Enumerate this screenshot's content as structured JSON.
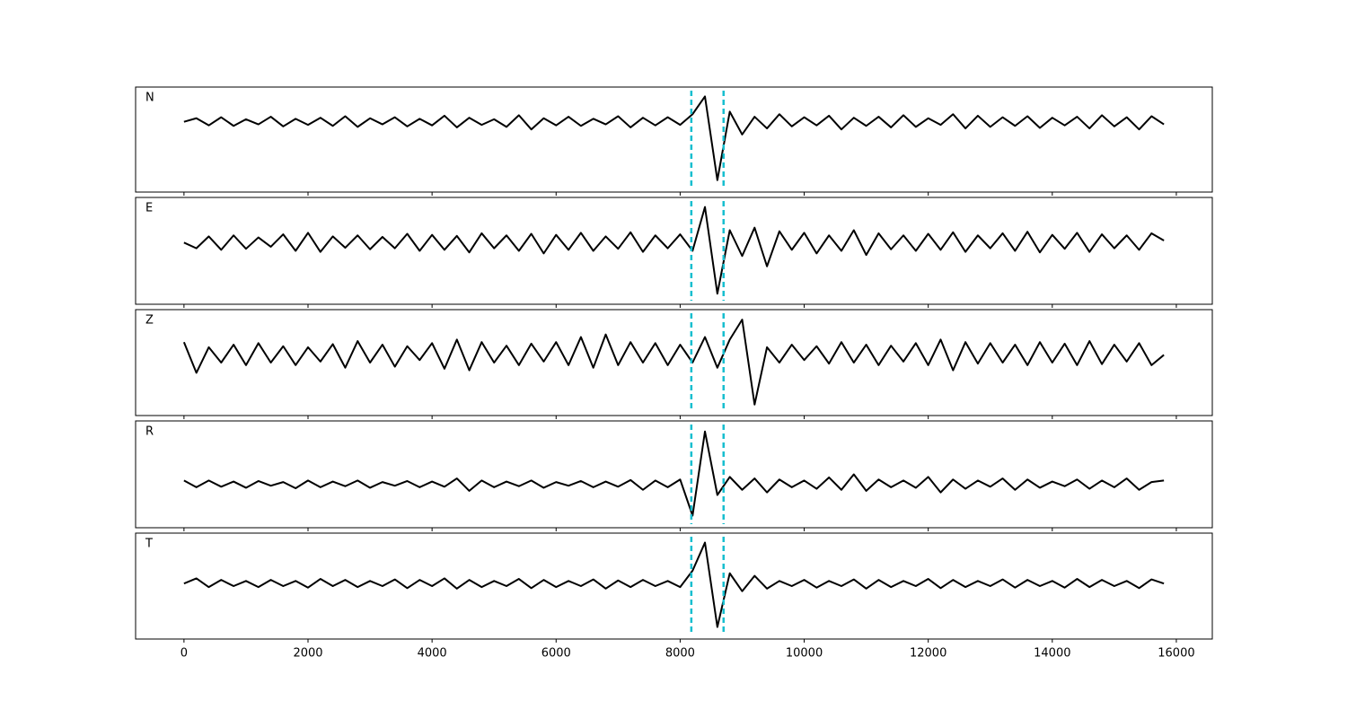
{
  "chart_data": {
    "type": "line",
    "x": [
      0,
      200,
      400,
      600,
      800,
      1000,
      1200,
      1400,
      1600,
      1800,
      2000,
      2200,
      2400,
      2600,
      2800,
      3000,
      3200,
      3400,
      3600,
      3800,
      4000,
      4200,
      4400,
      4600,
      4800,
      5000,
      5200,
      5400,
      5600,
      5800,
      6000,
      6200,
      6400,
      6600,
      6800,
      7000,
      7200,
      7400,
      7600,
      7800,
      8000,
      8200,
      8400,
      8600,
      8800,
      9000,
      9200,
      9400,
      9600,
      9800,
      10000,
      10200,
      10400,
      10600,
      10800,
      11000,
      11200,
      11400,
      11600,
      11800,
      12000,
      12200,
      12400,
      12600,
      12800,
      13000,
      13200,
      13400,
      13600,
      13800,
      14000,
      14200,
      14400,
      14600,
      14800,
      15000,
      15200,
      15400,
      15600,
      15800
    ],
    "xlim": [
      -780,
      16580
    ],
    "xticks": [
      0,
      2000,
      4000,
      6000,
      8000,
      10000,
      12000,
      14000,
      16000
    ],
    "ylim": [
      -1,
      1
    ],
    "vlines": [
      8180,
      8700
    ],
    "vline_color": "#17becf",
    "series": [
      {
        "name": "N",
        "color": "#000000",
        "values": [
          0.35,
          0.42,
          0.28,
          0.44,
          0.27,
          0.4,
          0.3,
          0.45,
          0.26,
          0.41,
          0.29,
          0.43,
          0.27,
          0.46,
          0.25,
          0.42,
          0.3,
          0.44,
          0.26,
          0.41,
          0.28,
          0.47,
          0.24,
          0.43,
          0.29,
          0.4,
          0.25,
          0.48,
          0.2,
          0.42,
          0.28,
          0.45,
          0.27,
          0.41,
          0.3,
          0.46,
          0.24,
          0.43,
          0.28,
          0.44,
          0.29,
          0.5,
          0.85,
          -0.8,
          0.55,
          0.1,
          0.45,
          0.22,
          0.5,
          0.26,
          0.44,
          0.28,
          0.47,
          0.2,
          0.43,
          0.27,
          0.45,
          0.24,
          0.48,
          0.25,
          0.42,
          0.29,
          0.5,
          0.22,
          0.47,
          0.25,
          0.44,
          0.27,
          0.46,
          0.23,
          0.43,
          0.28,
          0.45,
          0.22,
          0.48,
          0.26,
          0.44,
          0.2,
          0.46,
          0.3
        ]
      },
      {
        "name": "E",
        "color": "#000000",
        "values": [
          0.16,
          0.05,
          0.28,
          0.02,
          0.3,
          0.04,
          0.26,
          0.08,
          0.32,
          0.0,
          0.35,
          -0.02,
          0.28,
          0.06,
          0.3,
          0.03,
          0.27,
          0.05,
          0.33,
          0.0,
          0.31,
          0.02,
          0.29,
          -0.03,
          0.34,
          0.05,
          0.3,
          0.0,
          0.33,
          -0.05,
          0.31,
          0.02,
          0.35,
          0.0,
          0.28,
          0.04,
          0.36,
          -0.02,
          0.3,
          0.05,
          0.32,
          0.0,
          0.85,
          -0.83,
          0.4,
          -0.1,
          0.45,
          -0.3,
          0.38,
          0.02,
          0.35,
          -0.05,
          0.3,
          0.0,
          0.4,
          -0.08,
          0.34,
          0.03,
          0.3,
          0.0,
          0.33,
          0.02,
          0.36,
          -0.02,
          0.3,
          0.05,
          0.34,
          0.0,
          0.37,
          -0.03,
          0.31,
          0.04,
          0.35,
          -0.02,
          0.32,
          0.05,
          0.3,
          0.02,
          0.34,
          0.2
        ]
      },
      {
        "name": "Z",
        "color": "#000000",
        "values": [
          0.4,
          -0.2,
          0.3,
          0.0,
          0.35,
          -0.05,
          0.38,
          0.0,
          0.32,
          -0.05,
          0.3,
          0.02,
          0.36,
          -0.1,
          0.42,
          0.0,
          0.35,
          -0.08,
          0.32,
          0.05,
          0.38,
          -0.12,
          0.45,
          -0.15,
          0.4,
          0.0,
          0.33,
          -0.05,
          0.37,
          0.02,
          0.4,
          -0.05,
          0.5,
          -0.1,
          0.55,
          -0.05,
          0.4,
          0.0,
          0.38,
          -0.05,
          0.35,
          0.0,
          0.5,
          -0.1,
          0.45,
          0.84,
          -0.82,
          0.3,
          0.0,
          0.35,
          0.05,
          0.32,
          -0.02,
          0.4,
          0.0,
          0.35,
          -0.05,
          0.33,
          0.02,
          0.38,
          -0.05,
          0.45,
          -0.15,
          0.4,
          -0.02,
          0.38,
          0.0,
          0.35,
          -0.05,
          0.4,
          0.0,
          0.37,
          -0.05,
          0.42,
          -0.03,
          0.35,
          0.02,
          0.38,
          -0.05,
          0.15
        ]
      },
      {
        "name": "R",
        "color": "#000000",
        "values": [
          -0.12,
          -0.25,
          -0.12,
          -0.24,
          -0.14,
          -0.26,
          -0.13,
          -0.22,
          -0.15,
          -0.27,
          -0.12,
          -0.25,
          -0.14,
          -0.23,
          -0.12,
          -0.26,
          -0.15,
          -0.22,
          -0.13,
          -0.25,
          -0.14,
          -0.24,
          -0.08,
          -0.32,
          -0.12,
          -0.25,
          -0.14,
          -0.23,
          -0.12,
          -0.26,
          -0.15,
          -0.22,
          -0.13,
          -0.25,
          -0.14,
          -0.24,
          -0.11,
          -0.3,
          -0.12,
          -0.25,
          -0.1,
          -0.8,
          0.83,
          -0.4,
          -0.05,
          -0.3,
          -0.08,
          -0.35,
          -0.1,
          -0.25,
          -0.12,
          -0.28,
          -0.06,
          -0.3,
          0.0,
          -0.32,
          -0.1,
          -0.25,
          -0.12,
          -0.26,
          -0.05,
          -0.35,
          -0.1,
          -0.28,
          -0.12,
          -0.24,
          -0.08,
          -0.3,
          -0.1,
          -0.26,
          -0.14,
          -0.23,
          -0.1,
          -0.28,
          -0.12,
          -0.25,
          -0.08,
          -0.3,
          -0.15,
          -0.12
        ]
      },
      {
        "name": "T",
        "color": "#000000",
        "values": [
          0.05,
          0.15,
          -0.02,
          0.12,
          0.0,
          0.1,
          -0.02,
          0.12,
          0.0,
          0.1,
          -0.03,
          0.14,
          0.0,
          0.12,
          -0.02,
          0.1,
          0.0,
          0.13,
          -0.04,
          0.12,
          0.0,
          0.15,
          -0.05,
          0.12,
          -0.02,
          0.1,
          0.0,
          0.14,
          -0.04,
          0.12,
          -0.02,
          0.1,
          0.0,
          0.13,
          -0.05,
          0.11,
          -0.02,
          0.12,
          0.0,
          0.1,
          -0.02,
          0.3,
          0.85,
          -0.8,
          0.25,
          -0.1,
          0.2,
          -0.05,
          0.1,
          0.0,
          0.12,
          -0.03,
          0.1,
          0.0,
          0.13,
          -0.05,
          0.12,
          -0.02,
          0.1,
          0.0,
          0.14,
          -0.04,
          0.12,
          -0.02,
          0.1,
          0.0,
          0.13,
          -0.03,
          0.12,
          0.0,
          0.1,
          -0.03,
          0.14,
          -0.02,
          0.12,
          0.0,
          0.1,
          -0.04,
          0.13,
          0.05
        ]
      }
    ]
  }
}
